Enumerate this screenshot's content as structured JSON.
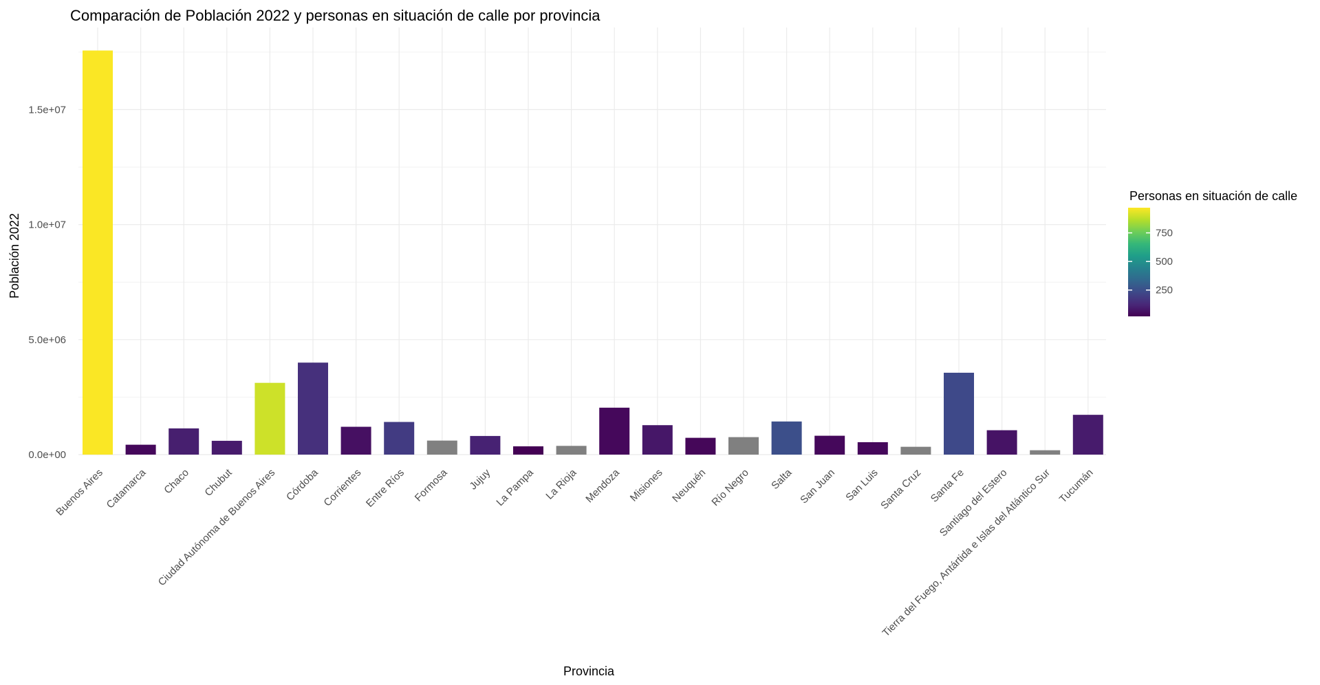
{
  "chart_data": {
    "type": "bar",
    "title": "Comparación de Población 2022 y personas en situación de calle por provincia",
    "xlabel": "Provincia",
    "ylabel": "Población 2022",
    "ylim": [
      0,
      17500000
    ],
    "yticks": [
      0,
      5000000,
      10000000,
      15000000
    ],
    "ytick_labels": [
      "0.0e+00",
      "5.0e+06",
      "1.0e+07",
      "1.5e+07"
    ],
    "grid": true,
    "legend": {
      "title": "Personas en situación de calle",
      "placement": "right",
      "range": [
        20,
        970
      ],
      "ticks": [
        250,
        500,
        750
      ],
      "tick_labels": [
        "250",
        "500",
        "750"
      ],
      "colors": [
        "#440154",
        "#482878",
        "#3e4989",
        "#31688e",
        "#26828e",
        "#1f9e89",
        "#35b779",
        "#6ece58",
        "#b5de2b",
        "#fde725"
      ],
      "na_color": "#808080"
    },
    "categories": [
      "Buenos Aires",
      "Catamarca",
      "Chaco",
      "Chubut",
      "Ciudad Autónoma de Buenos Aires",
      "Córdoba",
      "Corrientes",
      "Entre Ríos",
      "Formosa",
      "Jujuy",
      "La Pampa",
      "La Rioja",
      "Mendoza",
      "Misiones",
      "Neuquén",
      "Río Negro",
      "Salta",
      "San Juan",
      "San Luis",
      "Santa Cruz",
      "Santa Fe",
      "Santiago del Estero",
      "Tierra del Fuego, Antártida e Islas del Atlántico Sur",
      "Tucumán"
    ],
    "values": [
      17570000,
      430000,
      1140000,
      600000,
      3120000,
      4000000,
      1210000,
      1420000,
      610000,
      810000,
      360000,
      380000,
      2040000,
      1280000,
      730000,
      760000,
      1440000,
      820000,
      540000,
      340000,
      3560000,
      1060000,
      190000,
      1730000
    ],
    "color_values": [
      965,
      40,
      100,
      90,
      900,
      150,
      60,
      185,
      null,
      110,
      20,
      null,
      40,
      80,
      35,
      null,
      250,
      40,
      40,
      null,
      230,
      70,
      null,
      90
    ]
  }
}
